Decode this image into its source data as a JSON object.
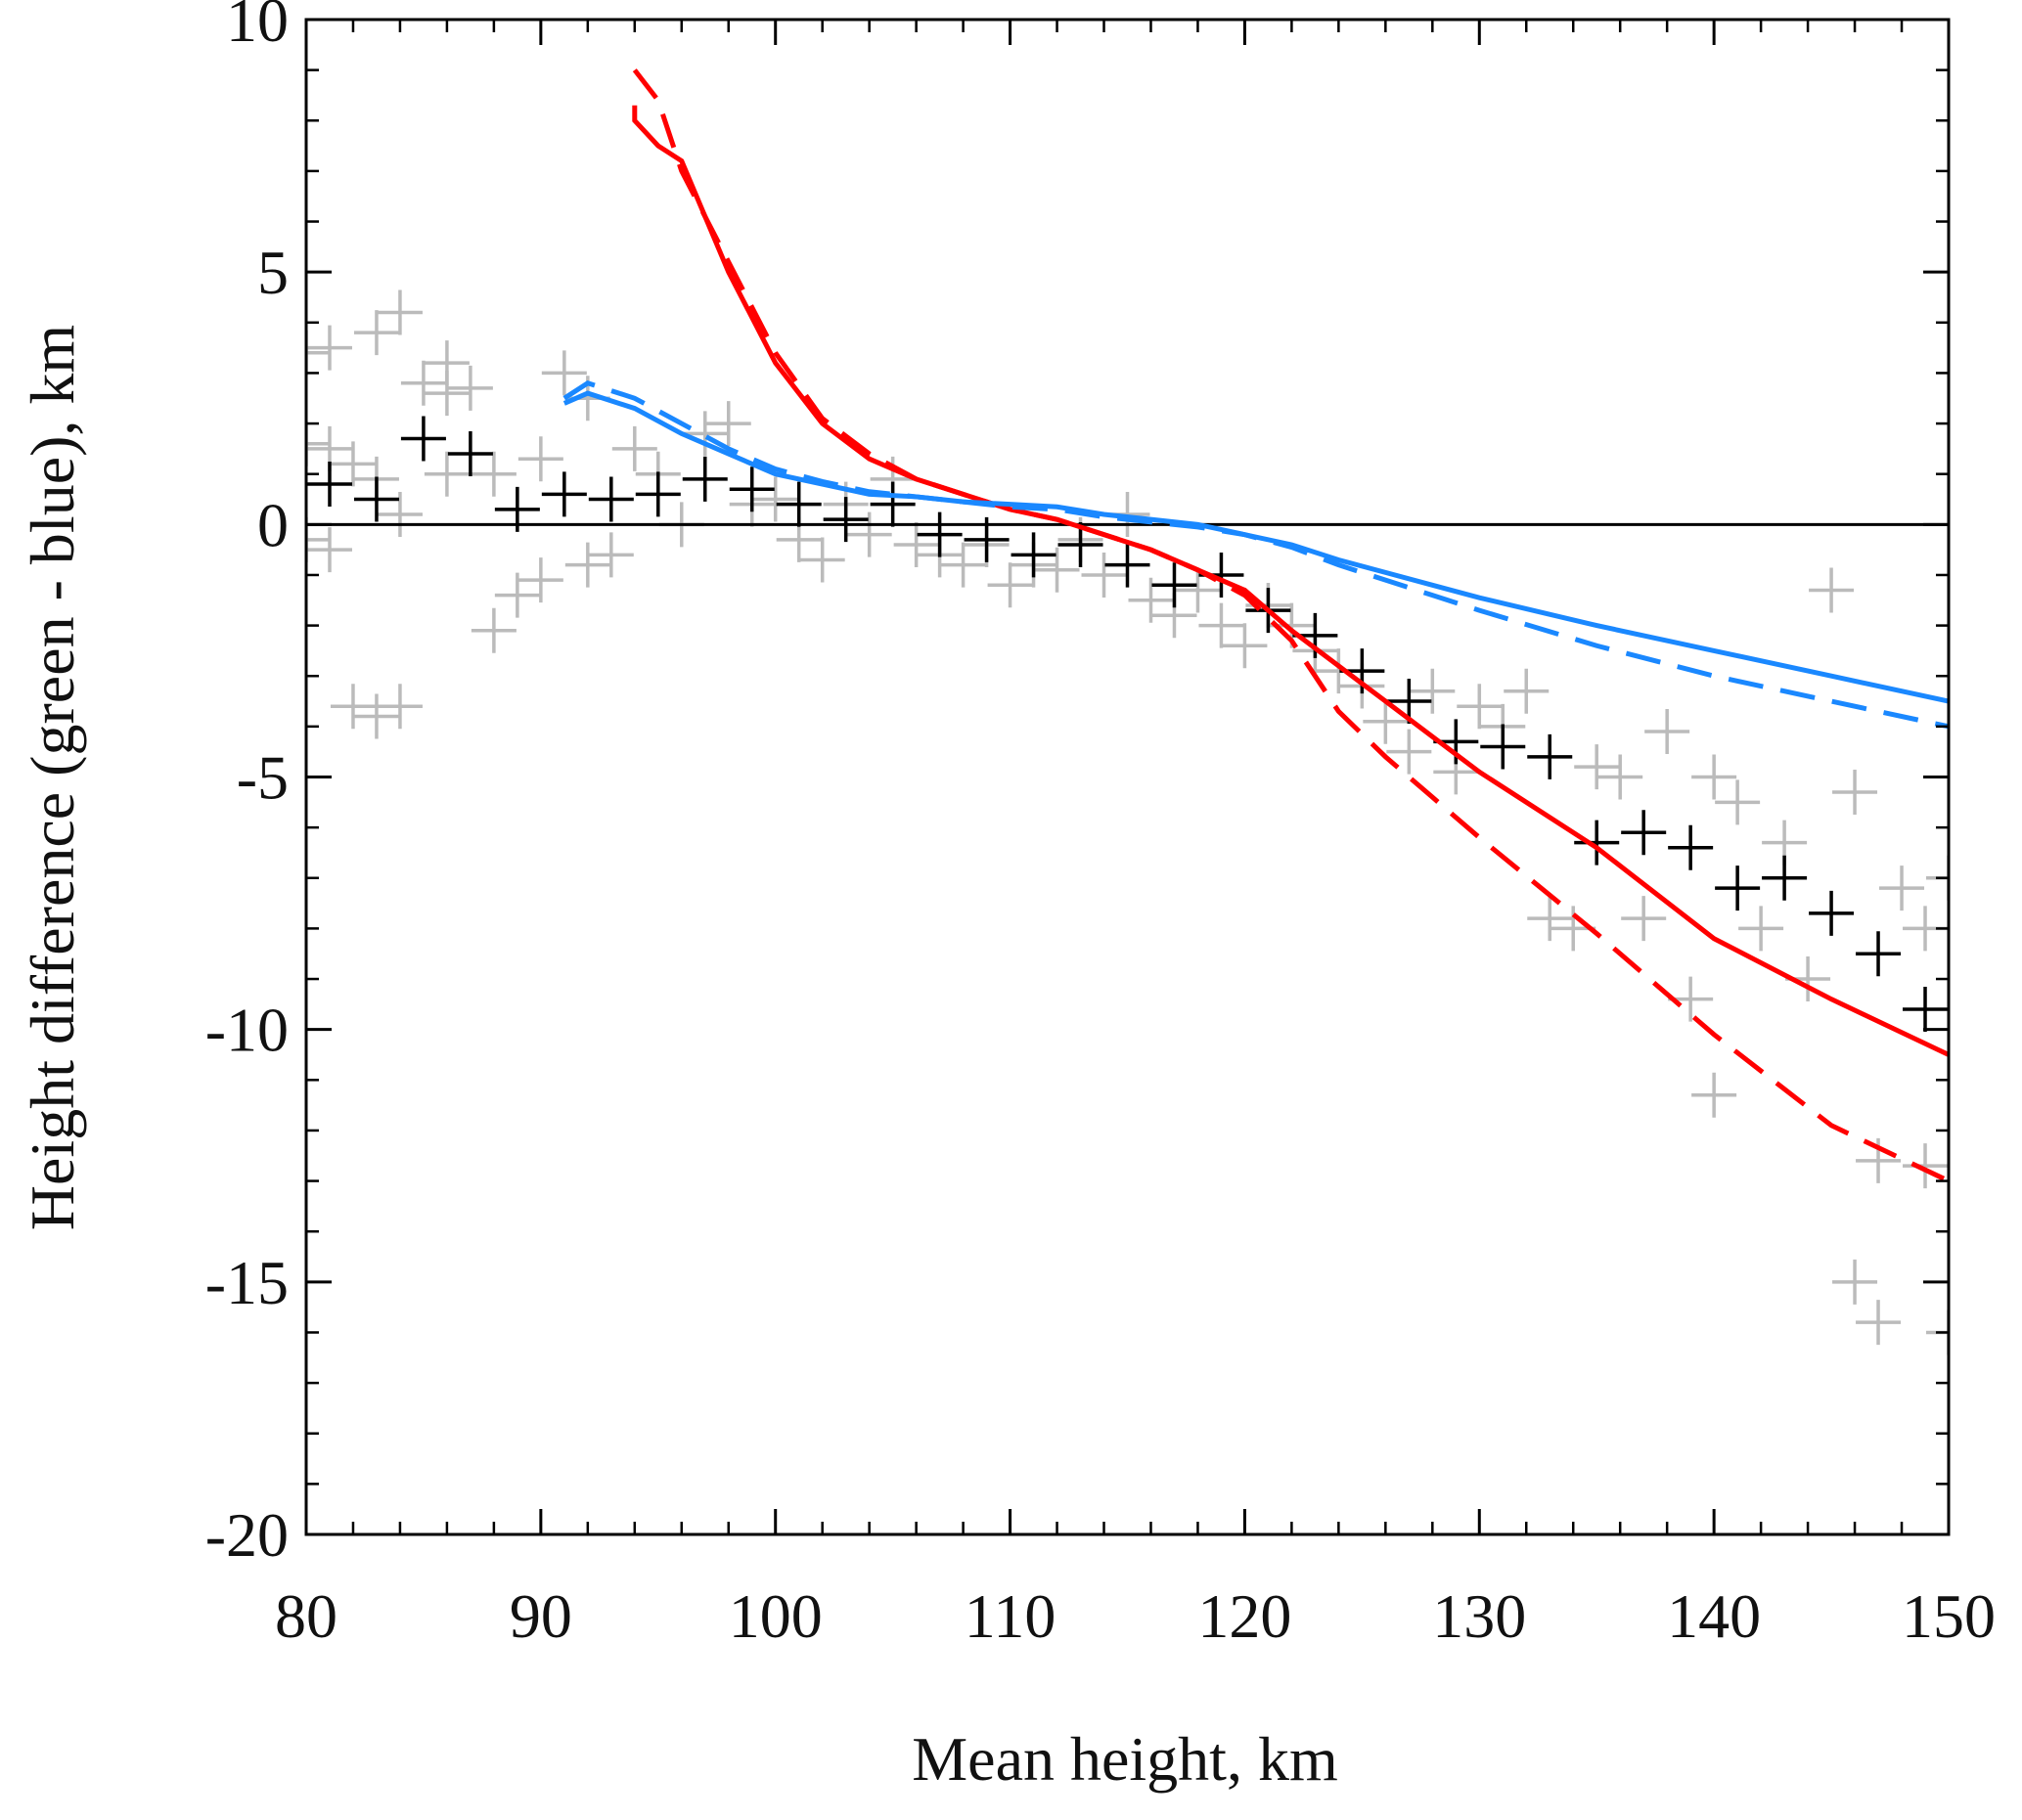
{
  "chart_data": {
    "type": "scatter",
    "xlabel": "Mean height, km",
    "ylabel": "Height difference (green - blue), km",
    "xlim": [
      80,
      150
    ],
    "xticks": [
      80,
      90,
      100,
      110,
      120,
      130,
      140,
      150
    ],
    "ylim": [
      -20,
      10
    ],
    "yticks": [
      -20,
      -15,
      -10,
      -5,
      0,
      5,
      10
    ],
    "hline": 0,
    "series": [
      {
        "color": "#bbbbbb",
        "marker": "+",
        "x": [
          80,
          81,
          83,
          84,
          80,
          81,
          82,
          83,
          84,
          80,
          81,
          82,
          83,
          84,
          85,
          86,
          86,
          87,
          86,
          88,
          88,
          89,
          90,
          90,
          91,
          92,
          92,
          93,
          94,
          95,
          96,
          97,
          98,
          99,
          100,
          101,
          102,
          103,
          104,
          105,
          106,
          107,
          108,
          109,
          110,
          111,
          112,
          113,
          114,
          115,
          116,
          117,
          118,
          119,
          120,
          121,
          122,
          123,
          124,
          125,
          126,
          127,
          128,
          129,
          130,
          131,
          132,
          133,
          134,
          135,
          136,
          137,
          138,
          139,
          140,
          140,
          141,
          142,
          143,
          144,
          145,
          146,
          146,
          147,
          147,
          148,
          149,
          150,
          150,
          149
        ],
        "values": [
          3.4,
          3.5,
          3.8,
          4.2,
          1.6,
          1.5,
          1.2,
          0.9,
          0.2,
          -0.3,
          -0.5,
          -3.6,
          -3.8,
          -3.6,
          2.8,
          3.2,
          2.6,
          2.7,
          1.0,
          1.0,
          -2.1,
          -1.4,
          -1.1,
          1.3,
          3.0,
          2.5,
          -0.8,
          -0.6,
          1.5,
          1.0,
          0.0,
          1.8,
          2.0,
          0.4,
          0.5,
          -0.3,
          -0.7,
          0.4,
          -0.2,
          0.9,
          -0.4,
          -0.6,
          -0.8,
          -0.4,
          -1.2,
          -0.8,
          -0.9,
          -0.3,
          -1.0,
          0.2,
          -1.5,
          -1.8,
          -1.3,
          -2.0,
          -2.4,
          -1.6,
          -2.0,
          -2.5,
          -2.9,
          -3.2,
          -3.9,
          -4.5,
          -3.3,
          -4.9,
          -3.6,
          -4.0,
          -3.3,
          -7.8,
          -8.0,
          -4.8,
          -5.0,
          -7.8,
          -4.1,
          -9.4,
          -5.0,
          -11.3,
          -5.5,
          -8.0,
          -6.3,
          -9.0,
          -1.3,
          -5.3,
          -15.0,
          -15.8,
          -12.6,
          -7.2,
          -12.7,
          -16.0,
          -7.0,
          -8.0
        ]
      },
      {
        "color": "#000000",
        "marker": "+",
        "x": [
          81,
          83,
          85,
          87,
          89,
          91,
          93,
          95,
          97,
          99,
          101,
          103,
          105,
          107,
          109,
          111,
          113,
          115,
          117,
          119,
          121,
          123,
          125,
          127,
          129,
          131,
          133,
          135,
          137,
          139,
          141,
          143,
          145,
          147,
          149
        ],
        "values": [
          0.8,
          0.5,
          1.7,
          1.4,
          0.3,
          0.6,
          0.5,
          0.6,
          0.9,
          0.7,
          0.4,
          0.1,
          0.4,
          -0.2,
          -0.3,
          -0.6,
          -0.4,
          -0.8,
          -1.2,
          -1.0,
          -1.7,
          -2.2,
          -2.9,
          -3.5,
          -4.3,
          -4.4,
          -4.6,
          -6.3,
          -6.1,
          -6.4,
          -7.2,
          -7.0,
          -7.7,
          -8.5,
          -9.6
        ]
      },
      {
        "color": "#ff0000",
        "dash": false,
        "x": [
          94,
          94,
          95,
          96,
          98,
          100,
          102,
          104,
          106,
          108,
          110,
          112,
          114,
          116,
          118,
          120,
          122,
          124,
          126,
          128,
          130,
          135,
          140,
          145,
          150
        ],
        "values": [
          8.3,
          8.0,
          7.5,
          7.2,
          5.0,
          3.2,
          2.0,
          1.3,
          0.9,
          0.6,
          0.3,
          0.1,
          -0.2,
          -0.5,
          -0.9,
          -1.3,
          -2.1,
          -2.8,
          -3.5,
          -4.2,
          -4.9,
          -6.4,
          -8.2,
          -9.4,
          -10.5
        ]
      },
      {
        "color": "#ff0000",
        "dash": true,
        "x": [
          94,
          95,
          96,
          98,
          100,
          102,
          104,
          106,
          108,
          110,
          112,
          114,
          116,
          118,
          120,
          122,
          124,
          126,
          128,
          130,
          135,
          140,
          145,
          150
        ],
        "values": [
          9.0,
          8.4,
          7.0,
          5.2,
          3.4,
          2.1,
          1.4,
          0.9,
          0.6,
          0.3,
          0.1,
          -0.2,
          -0.5,
          -0.9,
          -1.4,
          -2.3,
          -3.7,
          -4.6,
          -5.4,
          -6.2,
          -8.1,
          -10.1,
          -11.9,
          -13.0
        ]
      },
      {
        "color": "#1a88ff",
        "dash": false,
        "x": [
          91,
          92,
          94,
          96,
          98,
          100,
          102,
          104,
          106,
          108,
          110,
          112,
          114,
          116,
          118,
          120,
          122,
          124,
          126,
          128,
          130,
          135,
          140,
          145,
          150
        ],
        "values": [
          2.4,
          2.6,
          2.3,
          1.8,
          1.4,
          1.0,
          0.8,
          0.6,
          0.55,
          0.45,
          0.4,
          0.35,
          0.2,
          0.1,
          0.0,
          -0.2,
          -0.4,
          -0.7,
          -0.95,
          -1.2,
          -1.45,
          -2.0,
          -2.5,
          -3.0,
          -3.5
        ]
      },
      {
        "color": "#1a88ff",
        "dash": true,
        "x": [
          91,
          92,
          94,
          96,
          98,
          100,
          102,
          104,
          106,
          108,
          110,
          112,
          114,
          116,
          118,
          120,
          122,
          124,
          126,
          128,
          130,
          135,
          140,
          145,
          150
        ],
        "values": [
          2.5,
          2.8,
          2.5,
          2.0,
          1.5,
          1.1,
          0.85,
          0.65,
          0.55,
          0.45,
          0.35,
          0.3,
          0.15,
          0.05,
          -0.05,
          -0.2,
          -0.45,
          -0.8,
          -1.1,
          -1.4,
          -1.7,
          -2.4,
          -3.0,
          -3.5,
          -4.0
        ]
      }
    ]
  }
}
